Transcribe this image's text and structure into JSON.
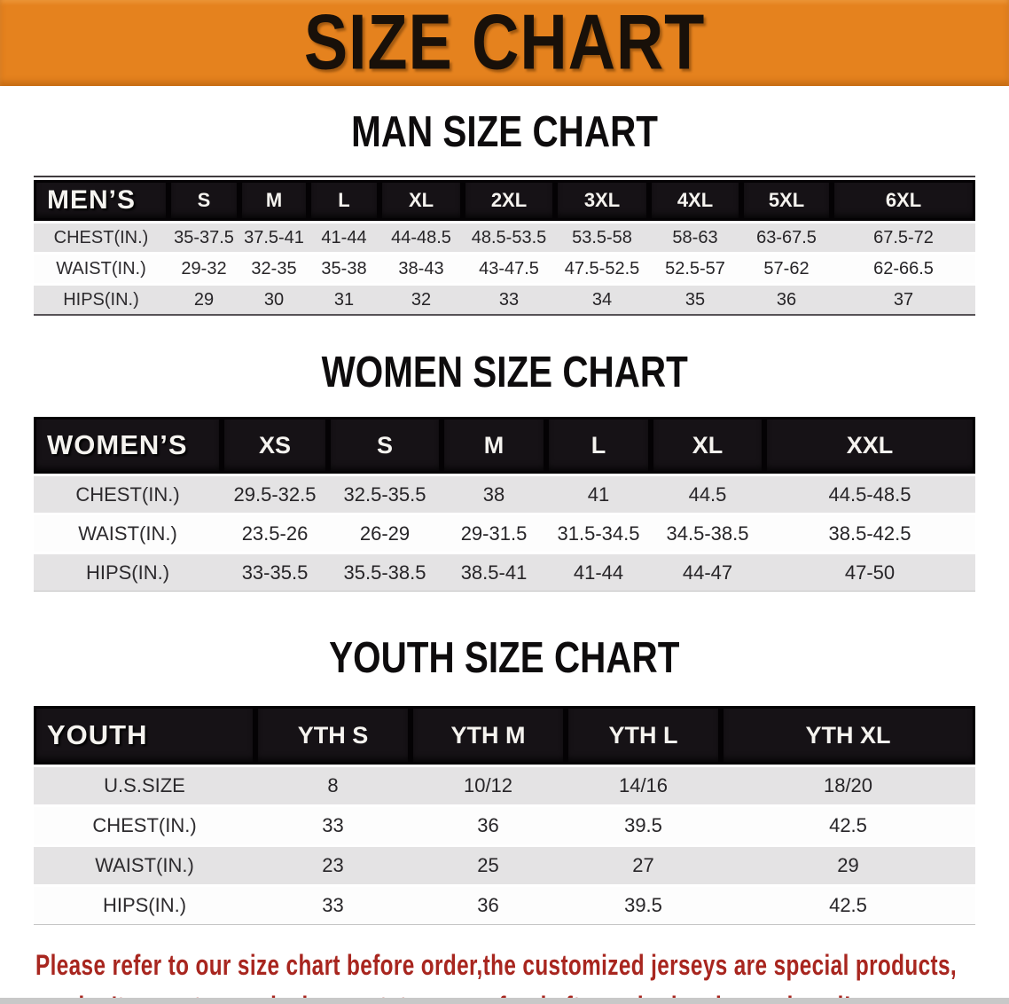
{
  "banner": {
    "title": "SIZE CHART"
  },
  "colors": {
    "banner_bg": "#E5821E",
    "header_bg": "#161216",
    "row_alt": "#E4E3E4",
    "footer_red": "#A8261F",
    "bottom_strip": "#C8C8C8"
  },
  "sections": [
    {
      "id": "men",
      "title": "MAN SIZE CHART",
      "header_label": "MEN’S",
      "columns": [
        "S",
        "M",
        "L",
        "XL",
        "2XL",
        "3XL",
        "4XL",
        "5XL",
        "6XL"
      ],
      "rows": [
        {
          "label": "CHEST(IN.)",
          "values": [
            "35-37.5",
            "37.5-41",
            "41-44",
            "44-48.5",
            "48.5-53.5",
            "53.5-58",
            "58-63",
            "63-67.5",
            "67.5-72"
          ]
        },
        {
          "label": "WAIST(IN.)",
          "values": [
            "29-32",
            "32-35",
            "35-38",
            "38-43",
            "43-47.5",
            "47.5-52.5",
            "52.5-57",
            "57-62",
            "62-66.5"
          ]
        },
        {
          "label": "HIPS(IN.)",
          "values": [
            "29",
            "30",
            "31",
            "32",
            "33",
            "34",
            "35",
            "36",
            "37"
          ]
        }
      ]
    },
    {
      "id": "women",
      "title": "WOMEN SIZE CHART",
      "header_label": "WOMEN’S",
      "columns": [
        "XS",
        "S",
        "M",
        "L",
        "XL",
        "XXL"
      ],
      "rows": [
        {
          "label": "CHEST(IN.)",
          "values": [
            "29.5-32.5",
            "32.5-35.5",
            "38",
            "41",
            "44.5",
            "44.5-48.5"
          ]
        },
        {
          "label": "WAIST(IN.)",
          "values": [
            "23.5-26",
            "26-29",
            "29-31.5",
            "31.5-34.5",
            "34.5-38.5",
            "38.5-42.5"
          ]
        },
        {
          "label": "HIPS(IN.)",
          "values": [
            "33-35.5",
            "35.5-38.5",
            "38.5-41",
            "41-44",
            "44-47",
            "47-50"
          ]
        }
      ]
    },
    {
      "id": "youth",
      "title": "YOUTH SIZE CHART",
      "header_label": "YOUTH",
      "columns": [
        "YTH S",
        "YTH M",
        "YTH L",
        "YTH XL"
      ],
      "rows": [
        {
          "label": "U.S.SIZE",
          "values": [
            "8",
            "10/12",
            "14/16",
            "18/20"
          ]
        },
        {
          "label": "CHEST(IN.)",
          "values": [
            "33",
            "36",
            "39.5",
            "42.5"
          ]
        },
        {
          "label": "WAIST(IN.)",
          "values": [
            "23",
            "25",
            "27",
            "29"
          ]
        },
        {
          "label": "HIPS(IN.)",
          "values": [
            "33",
            "36",
            "39.5",
            "42.5"
          ]
        }
      ]
    }
  ],
  "footer": {
    "lines": [
      "Please refer to our size chart before order,the customized jerseys are special products,",
      "we don't accept cancel, change, teturn or refund after order has been placed!"
    ]
  }
}
